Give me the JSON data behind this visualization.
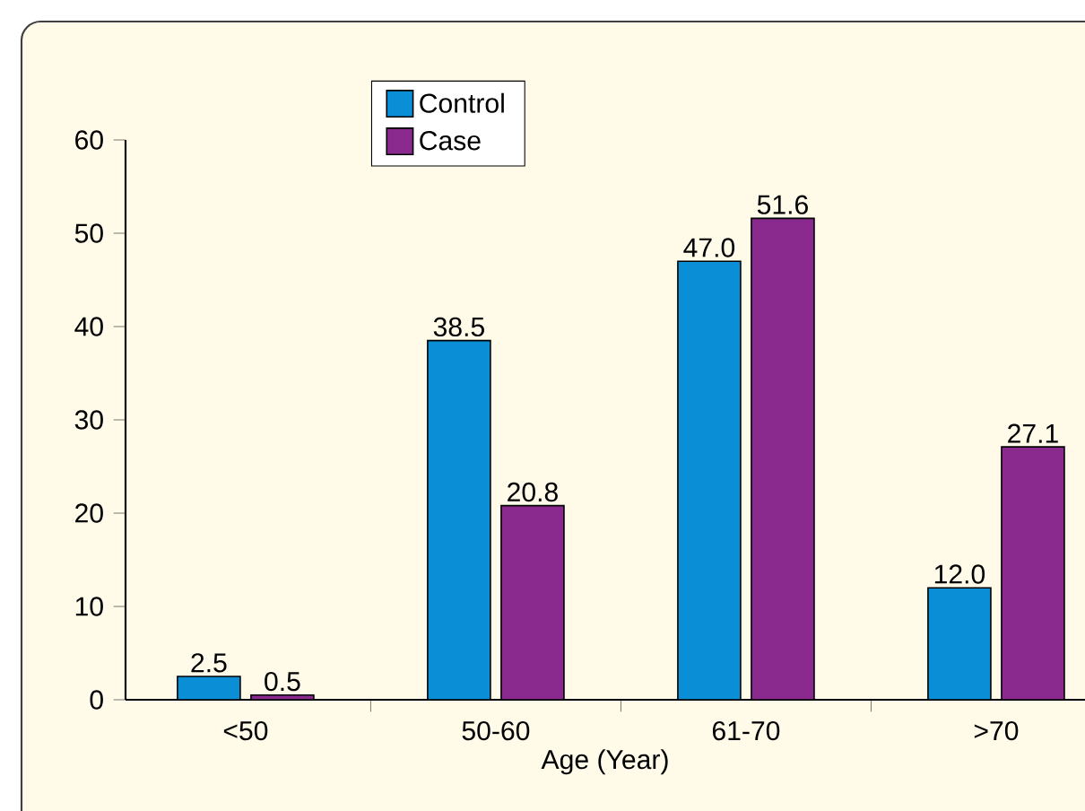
{
  "chart_data": {
    "type": "bar",
    "xlabel": "Age (Year)",
    "categories": [
      "<50",
      "50-60",
      "61-70",
      ">70"
    ],
    "series": [
      {
        "name": "Control",
        "color": "#0a8fd6",
        "values": [
          2.5,
          38.5,
          47.0,
          12.0
        ],
        "value_labels": [
          "2.5",
          "38.5",
          "47.0",
          "12.0"
        ]
      },
      {
        "name": "Case",
        "color": "#8b2a8e",
        "values": [
          0.5,
          20.8,
          51.6,
          27.1
        ],
        "value_labels": [
          "0.5",
          "20.8",
          "51.6",
          "27.1"
        ]
      }
    ],
    "ylim": [
      0,
      60
    ],
    "yticks": [
      0,
      10,
      20,
      30,
      40,
      50,
      60
    ],
    "legend": "top",
    "grid": false
  }
}
